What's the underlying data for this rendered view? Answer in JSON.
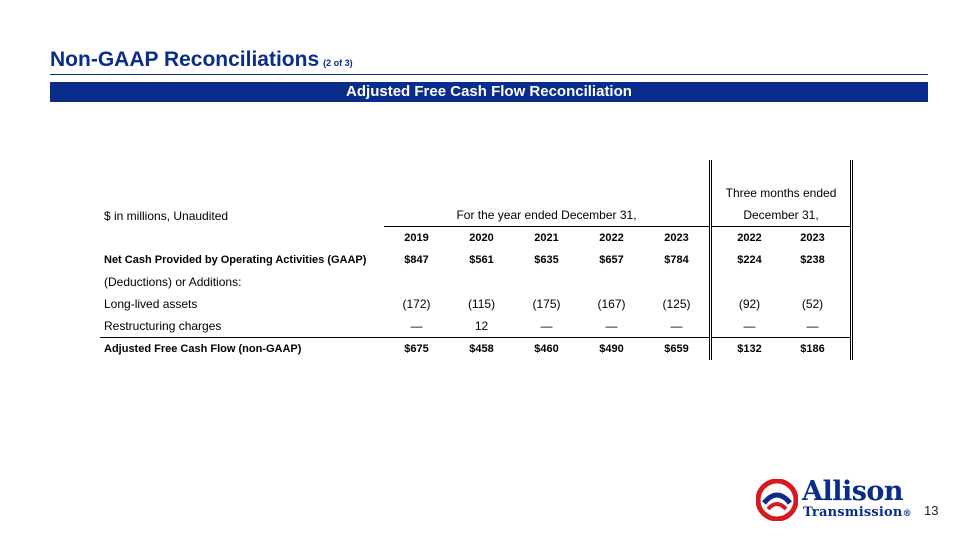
{
  "header": {
    "title": "Non-GAAP Reconciliations",
    "title_sub": "(2 of 3)",
    "banner": "Adjusted Free Cash Flow Reconciliation"
  },
  "table": {
    "unit_label": "$ in millions, Unaudited",
    "annual_header": "For the year ended December 31,",
    "quarter_header_line1": "Three months ended",
    "quarter_header_line2": "December 31,",
    "annual_years": [
      "2019",
      "2020",
      "2021",
      "2022",
      "2023"
    ],
    "quarter_years": [
      "2022",
      "2023"
    ],
    "rows": [
      {
        "label": "Net Cash Provided by Operating Activities (GAAP)",
        "bold": true,
        "annual": [
          "$847",
          "$561",
          "$635",
          "$657",
          "$784"
        ],
        "quarter": [
          "$224",
          "$238"
        ]
      },
      {
        "label": "(Deductions) or Additions:",
        "bold": false,
        "annual": [
          "",
          "",
          "",
          "",
          ""
        ],
        "quarter": [
          "",
          ""
        ]
      },
      {
        "label": "Long-lived assets",
        "bold": false,
        "annual": [
          "(172)",
          "(115)",
          "(175)",
          "(167)",
          "(125)"
        ],
        "quarter": [
          "(92)",
          "(52)"
        ]
      },
      {
        "label": "Restructuring charges",
        "bold": false,
        "annual": [
          "—",
          "12",
          "—",
          "—",
          "—"
        ],
        "quarter": [
          "—",
          "—"
        ]
      },
      {
        "label": "Adjusted Free Cash Flow (non-GAAP)",
        "bold": true,
        "annual": [
          "$675",
          "$458",
          "$460",
          "$490",
          "$659"
        ],
        "quarter": [
          "$132",
          "$186"
        ]
      }
    ]
  },
  "footer": {
    "logo_word1": "Allison",
    "logo_word2": "Transmission",
    "logo_mark": "®",
    "page_number": "13"
  },
  "colors": {
    "brand_blue": "#0a2d8c",
    "logo_red": "#d71920"
  }
}
